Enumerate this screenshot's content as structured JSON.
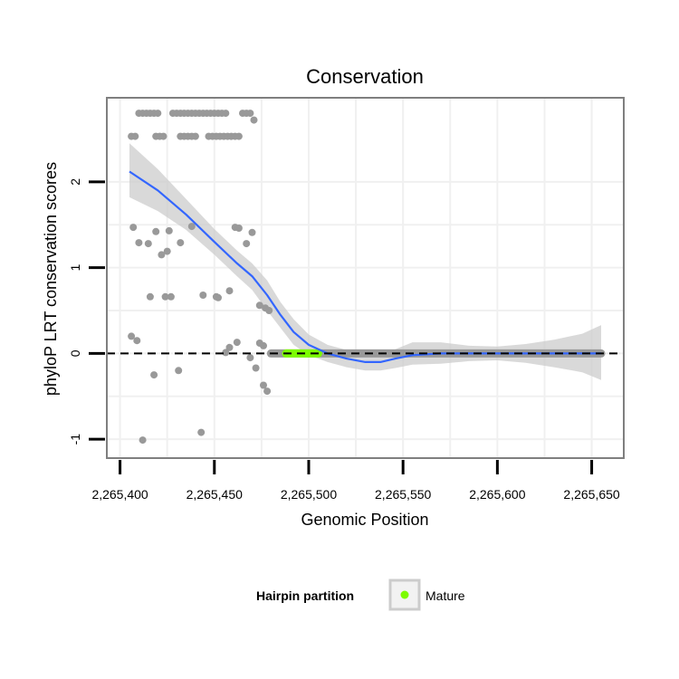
{
  "chart_data": {
    "type": "scatter",
    "title": "Conservation",
    "xlabel": "Genomic Position",
    "ylabel": "phyloP LRT conservation scores",
    "xlim": [
      2265393,
      2265667
    ],
    "ylim": [
      -1.22,
      2.98
    ],
    "xticks": [
      2265400,
      2265450,
      2265500,
      2265550,
      2265600,
      2265650
    ],
    "xtick_labels": [
      "2,265,400",
      "2,265,450",
      "2,265,500",
      "2,265,550",
      "2,265,600",
      "2,265,650"
    ],
    "yticks": [
      -1,
      0,
      1,
      2
    ],
    "ytick_labels": [
      "-1",
      "0",
      "1",
      "2"
    ],
    "reference_line_y": 0,
    "colors": {
      "points": "#999999",
      "mature": "#7CFC00",
      "smooth": "#3366FF",
      "ribbon": "#cccccc",
      "grid": "#f0f0f0",
      "panel_border": "#7f7f7f"
    },
    "points_upper": [
      [
        2265406,
        2.53
      ],
      [
        2265408,
        2.53
      ],
      [
        2265410,
        2.8
      ],
      [
        2265412,
        2.8
      ],
      [
        2265414,
        2.8
      ],
      [
        2265416,
        2.8
      ],
      [
        2265418,
        2.8
      ],
      [
        2265420,
        2.8
      ],
      [
        2265419,
        2.53
      ],
      [
        2265421,
        2.53
      ],
      [
        2265423,
        2.53
      ],
      [
        2265428,
        2.8
      ],
      [
        2265430,
        2.8
      ],
      [
        2265432,
        2.8
      ],
      [
        2265434,
        2.8
      ],
      [
        2265436,
        2.8
      ],
      [
        2265438,
        2.8
      ],
      [
        2265440,
        2.8
      ],
      [
        2265442,
        2.8
      ],
      [
        2265444,
        2.8
      ],
      [
        2265446,
        2.8
      ],
      [
        2265448,
        2.8
      ],
      [
        2265450,
        2.8
      ],
      [
        2265452,
        2.8
      ],
      [
        2265454,
        2.8
      ],
      [
        2265456,
        2.8
      ],
      [
        2265432,
        2.53
      ],
      [
        2265434,
        2.53
      ],
      [
        2265436,
        2.53
      ],
      [
        2265438,
        2.53
      ],
      [
        2265440,
        2.53
      ],
      [
        2265447,
        2.53
      ],
      [
        2265449,
        2.53
      ],
      [
        2265451,
        2.53
      ],
      [
        2265453,
        2.53
      ],
      [
        2265455,
        2.53
      ],
      [
        2265457,
        2.53
      ],
      [
        2265459,
        2.53
      ],
      [
        2265461,
        2.53
      ],
      [
        2265463,
        2.53
      ],
      [
        2265465,
        2.8
      ],
      [
        2265467,
        2.8
      ],
      [
        2265469,
        2.8
      ],
      [
        2265471,
        2.72
      ]
    ],
    "points_scatter": [
      [
        2265407,
        1.47
      ],
      [
        2265410,
        1.29
      ],
      [
        2265415,
        1.28
      ],
      [
        2265419,
        1.42
      ],
      [
        2265422,
        1.15
      ],
      [
        2265425,
        1.19
      ],
      [
        2265426,
        1.43
      ],
      [
        2265432,
        1.29
      ],
      [
        2265438,
        1.48
      ],
      [
        2265461,
        1.47
      ],
      [
        2265463,
        1.46
      ],
      [
        2265467,
        1.28
      ],
      [
        2265470,
        1.41
      ],
      [
        2265416,
        0.66
      ],
      [
        2265424,
        0.66
      ],
      [
        2265427,
        0.66
      ],
      [
        2265444,
        0.68
      ],
      [
        2265451,
        0.66
      ],
      [
        2265452,
        0.65
      ],
      [
        2265458,
        0.73
      ],
      [
        2265474,
        0.56
      ],
      [
        2265477,
        0.53
      ],
      [
        2265479,
        0.5
      ],
      [
        2265406,
        0.2
      ],
      [
        2265409,
        0.15
      ],
      [
        2265456,
        0.01
      ],
      [
        2265458,
        0.07
      ],
      [
        2265462,
        0.13
      ],
      [
        2265469,
        -0.05
      ],
      [
        2265472,
        -0.17
      ],
      [
        2265474,
        0.12
      ],
      [
        2265476,
        0.09
      ],
      [
        2265476,
        -0.37
      ],
      [
        2265478,
        -0.44
      ],
      [
        2265418,
        -0.25
      ],
      [
        2265431,
        -0.2
      ],
      [
        2265412,
        -1.01
      ],
      [
        2265443,
        -0.92
      ]
    ],
    "zero_run_x": [
      2265480,
      2265655
    ],
    "mature_run_x": [
      2265488,
      2265505
    ],
    "smooth": [
      [
        2265405,
        2.12
      ],
      [
        2265420,
        1.9
      ],
      [
        2265435,
        1.62
      ],
      [
        2265450,
        1.3
      ],
      [
        2265462,
        1.05
      ],
      [
        2265470,
        0.9
      ],
      [
        2265478,
        0.68
      ],
      [
        2265485,
        0.45
      ],
      [
        2265492,
        0.25
      ],
      [
        2265500,
        0.1
      ],
      [
        2265510,
        0.0
      ],
      [
        2265520,
        -0.06
      ],
      [
        2265530,
        -0.1
      ],
      [
        2265538,
        -0.1
      ],
      [
        2265546,
        -0.06
      ],
      [
        2265555,
        -0.02
      ],
      [
        2265570,
        0.0
      ],
      [
        2265600,
        0.0
      ],
      [
        2265630,
        0.0
      ],
      [
        2265655,
        0.0
      ]
    ],
    "ribbon_upper": [
      [
        2265405,
        2.45
      ],
      [
        2265420,
        2.15
      ],
      [
        2265435,
        1.8
      ],
      [
        2265450,
        1.45
      ],
      [
        2265462,
        1.2
      ],
      [
        2265470,
        1.05
      ],
      [
        2265478,
        0.85
      ],
      [
        2265485,
        0.6
      ],
      [
        2265492,
        0.4
      ],
      [
        2265500,
        0.22
      ],
      [
        2265510,
        0.1
      ],
      [
        2265520,
        0.04
      ],
      [
        2265530,
        0.0
      ],
      [
        2265538,
        0.01
      ],
      [
        2265546,
        0.05
      ],
      [
        2265555,
        0.13
      ],
      [
        2265570,
        0.13
      ],
      [
        2265585,
        0.09
      ],
      [
        2265600,
        0.08
      ],
      [
        2265615,
        0.11
      ],
      [
        2265630,
        0.16
      ],
      [
        2265645,
        0.23
      ],
      [
        2265655,
        0.33
      ]
    ],
    "ribbon_lower": [
      [
        2265405,
        1.82
      ],
      [
        2265420,
        1.66
      ],
      [
        2265435,
        1.44
      ],
      [
        2265450,
        1.15
      ],
      [
        2265462,
        0.9
      ],
      [
        2265470,
        0.74
      ],
      [
        2265478,
        0.5
      ],
      [
        2265485,
        0.3
      ],
      [
        2265492,
        0.1
      ],
      [
        2265500,
        -0.02
      ],
      [
        2265510,
        -0.1
      ],
      [
        2265520,
        -0.16
      ],
      [
        2265530,
        -0.2
      ],
      [
        2265538,
        -0.2
      ],
      [
        2265546,
        -0.17
      ],
      [
        2265555,
        -0.13
      ],
      [
        2265570,
        -0.12
      ],
      [
        2265585,
        -0.09
      ],
      [
        2265600,
        -0.08
      ],
      [
        2265615,
        -0.11
      ],
      [
        2265630,
        -0.16
      ],
      [
        2265645,
        -0.22
      ],
      [
        2265655,
        -0.31
      ]
    ]
  },
  "legend": {
    "title": "Hairpin partition",
    "items": [
      {
        "label": "Mature",
        "color": "#7CFC00"
      }
    ]
  }
}
